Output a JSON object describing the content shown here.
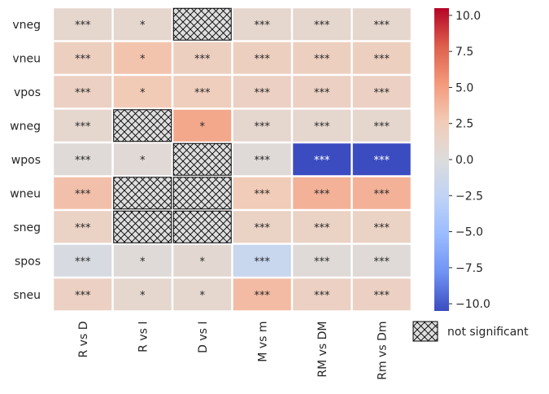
{
  "chart_data": {
    "type": "heatmap",
    "title": "",
    "xlabel": "",
    "ylabel": "",
    "rows": [
      "vneg",
      "vneu",
      "vpos",
      "wneg",
      "wpos",
      "wneu",
      "sneg",
      "spos",
      "sneu"
    ],
    "columns": [
      "R vs D",
      "R vs I",
      "D vs I",
      "M vs m",
      "RM vs DM",
      "Rm vs Dm"
    ],
    "values": [
      [
        1.0,
        1.0,
        null,
        1.0,
        1.0,
        1.0
      ],
      [
        2.0,
        3.0,
        2.0,
        2.0,
        2.0,
        2.0
      ],
      [
        1.8,
        2.6,
        2.2,
        1.8,
        1.8,
        1.8
      ],
      [
        1.0,
        null,
        4.5,
        1.0,
        1.0,
        1.0
      ],
      [
        0.3,
        0.5,
        null,
        0.3,
        -10.5,
        -10.5
      ],
      [
        3.2,
        null,
        null,
        2.5,
        4.0,
        4.0
      ],
      [
        1.6,
        null,
        null,
        1.6,
        1.6,
        1.6
      ],
      [
        -0.5,
        0.3,
        0.8,
        -1.8,
        0.3,
        0.3
      ],
      [
        1.8,
        1.0,
        1.0,
        3.5,
        1.8,
        1.8
      ]
    ],
    "annotations": [
      [
        "***",
        "*",
        "",
        "***",
        "***",
        "***"
      ],
      [
        "***",
        "*",
        "***",
        "***",
        "***",
        "***"
      ],
      [
        "***",
        "*",
        "***",
        "***",
        "***",
        "***"
      ],
      [
        "***",
        "",
        "*",
        "***",
        "***",
        "***"
      ],
      [
        "***",
        "*",
        "",
        "***",
        "***",
        "***"
      ],
      [
        "***",
        "",
        "",
        "***",
        "***",
        "***"
      ],
      [
        "***",
        "",
        "",
        "***",
        "***",
        "***"
      ],
      [
        "***",
        "*",
        "*",
        "***",
        "***",
        "***"
      ],
      [
        "***",
        "*",
        "*",
        "***",
        "***",
        "***"
      ]
    ],
    "colormap": "coolwarm",
    "colorbar": {
      "range": [
        -10.5,
        10.5
      ],
      "ticks": [
        10.0,
        7.5,
        5.0,
        2.5,
        0.0,
        -2.5,
        -5.0,
        -7.5,
        -10.0
      ],
      "tick_labels": [
        "10.0",
        "7.5",
        "5.0",
        "2.5",
        "0.0",
        "−2.5",
        "−5.0",
        "−7.5",
        "−10.0"
      ]
    },
    "legend": {
      "position": "bottom-right",
      "entries": [
        {
          "label": "not significant",
          "pattern": "crosshatch"
        }
      ]
    }
  }
}
